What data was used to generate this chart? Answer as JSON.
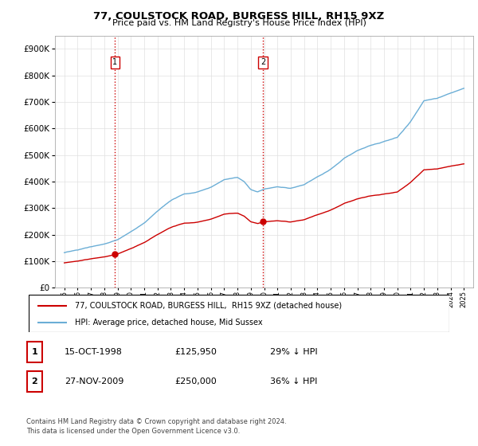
{
  "title": "77, COULSTOCK ROAD, BURGESS HILL, RH15 9XZ",
  "subtitle": "Price paid vs. HM Land Registry's House Price Index (HPI)",
  "ytick_values": [
    0,
    100000,
    200000,
    300000,
    400000,
    500000,
    600000,
    700000,
    800000,
    900000
  ],
  "ylim": [
    0,
    950000
  ],
  "xlim": [
    1994.3,
    2025.7
  ],
  "hpi_color": "#6baed6",
  "price_color": "#cc0000",
  "vline_color": "#cc0000",
  "sale1_x": 1998.79,
  "sale1_y": 125950,
  "sale2_x": 2009.91,
  "sale2_y": 250000,
  "legend_line1": "77, COULSTOCK ROAD, BURGESS HILL,  RH15 9XZ (detached house)",
  "legend_line2": "HPI: Average price, detached house, Mid Sussex",
  "row1": [
    "1",
    "15-OCT-1998",
    "£125,950",
    "29% ↓ HPI"
  ],
  "row2": [
    "2",
    "27-NOV-2009",
    "£250,000",
    "36% ↓ HPI"
  ],
  "footnote": "Contains HM Land Registry data © Crown copyright and database right 2024.\nThis data is licensed under the Open Government Licence v3.0.",
  "bg": "#ffffff",
  "grid_color": "#e0e0e0"
}
